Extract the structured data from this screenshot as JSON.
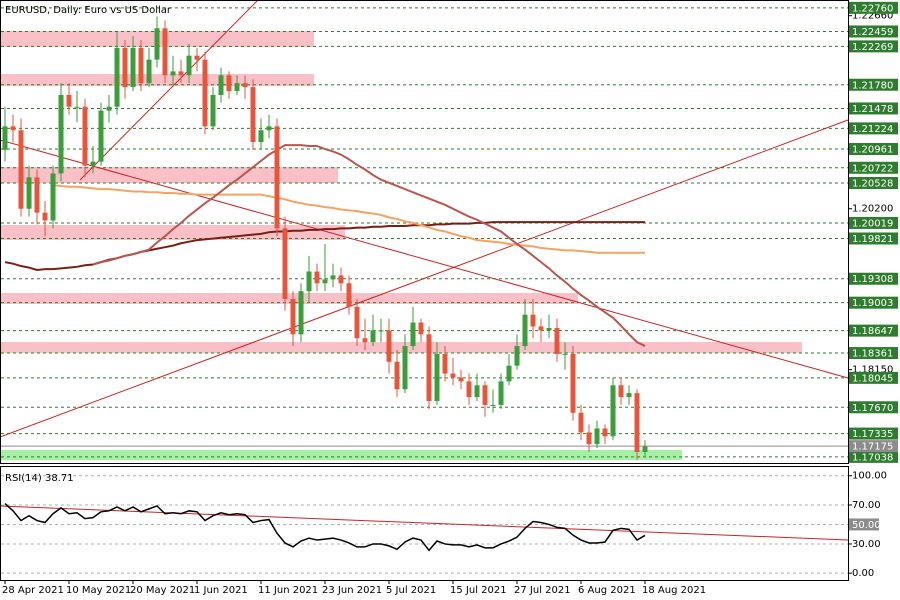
{
  "chart_data": [
    {
      "type": "candlestick",
      "title": "EURUSD, Daily: Euro vs US Dollar",
      "categories": [
        "28 Apr 2021",
        null,
        null,
        null,
        null,
        null,
        null,
        null,
        "10 May 2021",
        null,
        null,
        null,
        null,
        null,
        null,
        null,
        "20 May 2021",
        null,
        null,
        null,
        null,
        null,
        null,
        null,
        "1 Jun 2021",
        null,
        null,
        null,
        null,
        null,
        null,
        null,
        "11 Jun 2021",
        null,
        null,
        null,
        null,
        null,
        null,
        null,
        "23 Jun 2021",
        null,
        null,
        null,
        null,
        null,
        null,
        null,
        "5 Jul 2021",
        null,
        null,
        null,
        null,
        null,
        null,
        null,
        "15 Jul 2021",
        null,
        null,
        null,
        null,
        null,
        null,
        null,
        "27 Jul 2021",
        null,
        null,
        null,
        null,
        null,
        null,
        null,
        "6 Aug 2021",
        null,
        null,
        null,
        null,
        null,
        null,
        null,
        "18 Aug 2021"
      ],
      "open": [
        1.2095,
        1.2125,
        1.212,
        1.202,
        1.206,
        1.2015,
        1.2005,
        1.2065,
        1.2165,
        1.215,
        1.215,
        1.2075,
        1.208,
        1.2145,
        1.215,
        1.2225,
        1.2175,
        1.2225,
        1.218,
        1.221,
        1.225,
        1.219,
        1.2195,
        1.219,
        1.2215,
        1.221,
        1.2125,
        1.2165,
        1.219,
        1.217,
        1.218,
        1.2175,
        1.2105,
        1.212,
        1.2125,
        1.1995,
        1.1905,
        1.186,
        1.1915,
        1.194,
        1.1925,
        1.193,
        1.1935,
        1.1925,
        1.1895,
        1.1855,
        1.185,
        1.1865,
        1.1865,
        1.1825,
        1.179,
        1.1845,
        1.1875,
        1.186,
        1.1775,
        1.1835,
        1.181,
        1.1805,
        1.18,
        1.178,
        1.1795,
        1.177,
        1.177,
        1.18,
        1.182,
        1.1845,
        1.1885,
        1.187,
        1.1865,
        1.1868,
        1.1835,
        1.1835,
        1.176,
        1.1735,
        1.172,
        1.174,
        1.173,
        1.1795,
        1.178,
        1.1785,
        1.171
      ],
      "high": [
        1.215,
        1.214,
        1.2135,
        1.2075,
        1.207,
        1.203,
        1.2075,
        1.218,
        1.218,
        1.217,
        1.216,
        1.21,
        1.2155,
        1.2165,
        1.2245,
        1.2235,
        1.224,
        1.2235,
        1.2225,
        1.2265,
        1.226,
        1.2215,
        1.221,
        1.223,
        1.2225,
        1.222,
        1.2175,
        1.22,
        1.2195,
        1.219,
        1.219,
        1.2185,
        1.2135,
        1.214,
        1.2135,
        1.201,
        1.1915,
        1.1925,
        1.196,
        1.195,
        1.1975,
        1.195,
        1.1945,
        1.1935,
        1.1905,
        1.188,
        1.1885,
        1.188,
        1.188,
        1.184,
        1.186,
        1.1895,
        1.188,
        1.187,
        1.185,
        1.1845,
        1.183,
        1.1815,
        1.181,
        1.181,
        1.18,
        1.179,
        1.181,
        1.1835,
        1.186,
        1.1905,
        1.1905,
        1.188,
        1.1885,
        1.188,
        1.185,
        1.1845,
        1.177,
        1.1745,
        1.175,
        1.1745,
        1.1805,
        1.1805,
        1.1795,
        1.179,
        1.1725
      ],
      "low": [
        1.208,
        1.2105,
        1.201,
        1.201,
        1.2,
        1.1985,
        1.1995,
        1.2055,
        1.214,
        1.213,
        1.206,
        1.2065,
        1.2075,
        1.213,
        1.214,
        1.216,
        1.217,
        1.217,
        1.2175,
        1.22,
        1.218,
        1.2175,
        1.218,
        1.218,
        1.2195,
        1.2115,
        1.212,
        1.2155,
        1.216,
        1.2165,
        1.216,
        1.2095,
        1.2095,
        1.211,
        1.1985,
        1.189,
        1.1845,
        1.185,
        1.19,
        1.1915,
        1.1915,
        1.192,
        1.1915,
        1.1885,
        1.1845,
        1.184,
        1.1845,
        1.185,
        1.181,
        1.178,
        1.1785,
        1.184,
        1.185,
        1.1765,
        1.177,
        1.18,
        1.1795,
        1.179,
        1.177,
        1.1775,
        1.1755,
        1.176,
        1.1765,
        1.1795,
        1.1815,
        1.184,
        1.1855,
        1.185,
        1.1855,
        1.1825,
        1.1815,
        1.175,
        1.1725,
        1.171,
        1.1715,
        1.172,
        1.1725,
        1.177,
        1.177,
        1.17,
        1.1705
      ],
      "close": [
        1.2125,
        1.212,
        1.202,
        1.206,
        1.2015,
        1.2005,
        1.2065,
        1.2165,
        1.215,
        1.215,
        1.2075,
        1.208,
        1.2145,
        1.215,
        1.2225,
        1.2175,
        1.2225,
        1.218,
        1.221,
        1.225,
        1.219,
        1.2195,
        1.219,
        1.2215,
        1.221,
        1.2125,
        1.2165,
        1.219,
        1.217,
        1.218,
        1.2175,
        1.2105,
        1.212,
        1.2125,
        1.1995,
        1.1905,
        1.186,
        1.1915,
        1.194,
        1.1925,
        1.193,
        1.1935,
        1.1925,
        1.1895,
        1.1855,
        1.185,
        1.1865,
        1.1865,
        1.1825,
        1.179,
        1.1845,
        1.1875,
        1.186,
        1.1775,
        1.1835,
        1.181,
        1.1805,
        1.18,
        1.178,
        1.1795,
        1.177,
        1.177,
        1.18,
        1.182,
        1.1845,
        1.1885,
        1.187,
        1.1865,
        1.1868,
        1.1835,
        1.1835,
        1.176,
        1.1735,
        1.172,
        1.174,
        1.173,
        1.1795,
        1.178,
        1.1785,
        1.171,
        1.1717
      ],
      "up_color": "#3a9e3a",
      "down_color": "#e8553a",
      "overlays": [
        {
          "color": "#7b1f14",
          "values": [
            1.1952,
            1.195,
            1.1947,
            1.1945,
            1.1942,
            1.1943,
            1.1943,
            1.1944,
            1.1945,
            1.1946,
            1.1948,
            1.1949,
            1.1952,
            1.1955,
            1.1957,
            1.196,
            1.1962,
            1.1965,
            1.1967,
            1.1969,
            1.1971,
            1.1973,
            1.1976,
            1.1978,
            1.198,
            1.1981,
            1.1982,
            1.1983,
            1.1984,
            1.1985,
            1.1986,
            1.1987,
            1.1988,
            1.199,
            1.1991,
            1.1991,
            1.1992,
            1.1992,
            1.1993,
            1.1993,
            1.1994,
            1.1994,
            1.1995,
            1.1995,
            1.1996,
            1.1996,
            1.1997,
            1.1997,
            1.1998,
            1.1998,
            1.1998,
            1.1999,
            1.1999,
            1.1999,
            1.2,
            1.2,
            1.2001,
            1.2001,
            1.2001,
            1.2002,
            1.2002,
            1.2003,
            1.2003,
            1.2003,
            1.2003,
            1.2003,
            1.2003,
            1.2003,
            1.2003,
            1.2003,
            1.2003,
            1.2003,
            1.2003,
            1.2003,
            1.2003,
            1.2003,
            1.2003,
            1.2003,
            1.2003,
            1.2003,
            1.2003
          ]
        },
        {
          "color": "#f4a460",
          "values": [
            null,
            null,
            null,
            null,
            null,
            null,
            1.205,
            1.2049,
            1.2048,
            1.2048,
            1.2047,
            1.2046,
            1.2045,
            1.2045,
            1.2044,
            1.2043,
            1.2042,
            1.2042,
            1.2041,
            1.2041,
            1.204,
            1.204,
            1.2039,
            1.2039,
            1.2038,
            1.2038,
            1.2038,
            1.2038,
            1.2038,
            1.2038,
            1.2038,
            1.2038,
            1.2038,
            1.2036,
            1.2034,
            1.2032,
            1.2029,
            1.2027,
            1.2025,
            1.2024,
            1.2022,
            1.2021,
            1.2019,
            1.2018,
            1.2017,
            1.2015,
            1.2014,
            1.2012,
            1.2009,
            1.2007,
            1.2004,
            1.2002,
            1.1999,
            1.1996,
            1.1993,
            1.1991,
            1.1988,
            1.1985,
            1.1983,
            1.198,
            1.1979,
            1.1978,
            1.1977,
            1.1975,
            1.1974,
            1.1973,
            1.1972,
            1.197,
            1.1969,
            1.1968,
            1.1967,
            1.1967,
            1.1966,
            1.1965,
            1.1964,
            1.1964,
            1.1964,
            1.1964,
            1.1964,
            1.1964,
            1.1964
          ]
        },
        {
          "color": "#b8574d",
          "values": [
            null,
            null,
            null,
            null,
            null,
            null,
            null,
            null,
            null,
            null,
            null,
            1.1949,
            1.1952,
            1.1954,
            1.1957,
            1.196,
            1.1962,
            1.1965,
            1.1968,
            1.1977,
            1.1985,
            1.1994,
            1.2002,
            1.2011,
            1.2019,
            1.2027,
            1.2034,
            1.2042,
            1.205,
            1.2057,
            1.2065,
            1.2073,
            1.2081,
            1.2089,
            1.2095,
            1.2101,
            1.2101,
            1.2101,
            1.21,
            1.21,
            1.2096,
            1.2093,
            1.2089,
            1.2083,
            1.2076,
            1.207,
            1.2063,
            1.2057,
            1.2053,
            1.2049,
            1.2045,
            1.2041,
            1.2037,
            1.2033,
            1.2029,
            1.2025,
            1.202,
            1.2015,
            1.201,
            1.2006,
            1.2001,
            1.1996,
            1.1991,
            1.1983,
            1.1975,
            1.1968,
            1.196,
            1.1952,
            1.1944,
            1.1935,
            1.1927,
            1.1918,
            1.191,
            1.1903,
            1.1895,
            1.1888,
            1.1881,
            1.1871,
            1.186,
            1.185,
            1.1845
          ]
        }
      ],
      "ylim": [
        1.1696,
        1.2286
      ],
      "yticks": [
        {
          "value": 1.2266,
          "label": "1.22660"
        },
        {
          "value": 1.202,
          "label": "1.20200"
        },
        {
          "value": 1.1815,
          "label": "1.18150"
        }
      ],
      "levels": [
        {
          "value": 1.2276,
          "label": "1.22760"
        },
        1.22459,
        1.22269,
        {
          "value": 1.2178,
          "label": "1.21780"
        },
        1.21478,
        1.21224,
        1.20961,
        1.20722,
        1.20528,
        1.20019,
        1.19821,
        1.19308,
        1.19003,
        1.18647,
        1.18361,
        1.18045,
        {
          "value": 1.1767,
          "label": "1.17670"
        },
        1.17335,
        1.17038
      ],
      "level_color": "#2e7d2e",
      "bid": 1.17175,
      "bid_color": "#8c8c8c"
    },
    {
      "type": "line",
      "title": "RSI(14) 38.71",
      "values": [
        71.4,
        64,
        54,
        59,
        54,
        52,
        61,
        67,
        61,
        62,
        56,
        57,
        63,
        64,
        68,
        64,
        68,
        63,
        66,
        69,
        61,
        62,
        61,
        64,
        63,
        54,
        59,
        62,
        60,
        61,
        60,
        52,
        54,
        55,
        41,
        31,
        27,
        33,
        36,
        34,
        35,
        36,
        34,
        31,
        27,
        27,
        30,
        30,
        28,
        24.5,
        32,
        36,
        34,
        23.5,
        33,
        30,
        29,
        29,
        27,
        29,
        26,
        26,
        30,
        33,
        37,
        46,
        53,
        52,
        50,
        47,
        46,
        39,
        34,
        31,
        31,
        32,
        44,
        46,
        45,
        34,
        38.71
      ],
      "color": "#000000",
      "ylim": [
        -7,
        110
      ],
      "yticks": [
        {
          "value": 100,
          "label": "100.00"
        },
        {
          "value": 70,
          "label": "70.00"
        },
        {
          "value": 50,
          "label": "50.00"
        },
        {
          "value": 30,
          "label": "30.00"
        },
        {
          "value": 0,
          "label": "0.00"
        }
      ],
      "highlight_tick": {
        "value": 50,
        "label": "50.00"
      },
      "grid": true
    }
  ]
}
